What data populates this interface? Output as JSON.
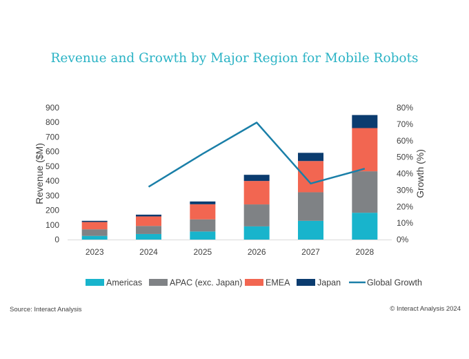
{
  "chart_data": {
    "type": "bar",
    "stacked": true,
    "title": "Revenue and Growth by Major Region for Mobile Robots",
    "categories": [
      "2023",
      "2024",
      "2025",
      "2026",
      "2027",
      "2028"
    ],
    "series": [
      {
        "name": "Americas",
        "color": "#18b4cc",
        "values": [
          25,
          38,
          55,
          90,
          128,
          183
        ]
      },
      {
        "name": "APAC (exc. Japan)",
        "color": "#7f8285",
        "values": [
          45,
          55,
          83,
          150,
          195,
          283
        ]
      },
      {
        "name": "EMEA",
        "color": "#f26651",
        "values": [
          50,
          65,
          103,
          160,
          213,
          295
        ]
      },
      {
        "name": "Japan",
        "color": "#0b3c6f",
        "values": [
          8,
          12,
          19,
          42,
          56,
          89
        ]
      }
    ],
    "line_series": {
      "name": "Global Growth",
      "color": "#1a7fa8",
      "values": [
        null,
        32,
        52,
        71,
        34,
        43
      ]
    },
    "ylabel": "Revenue ($M)",
    "y2label": "Growth (%)",
    "ylim": [
      0,
      900
    ],
    "y2lim": [
      0,
      80
    ],
    "y_ticks": [
      "0",
      "100",
      "200",
      "300",
      "400",
      "500",
      "600",
      "700",
      "800",
      "900"
    ],
    "y2_ticks": [
      "0%",
      "10%",
      "20%",
      "30%",
      "40%",
      "50%",
      "60%",
      "70%",
      "80%"
    ],
    "grid": false,
    "legend_position": "bottom"
  },
  "footer": {
    "source": "Source: Interact Analysis",
    "copyright": "© Interact Analysis 2024"
  }
}
